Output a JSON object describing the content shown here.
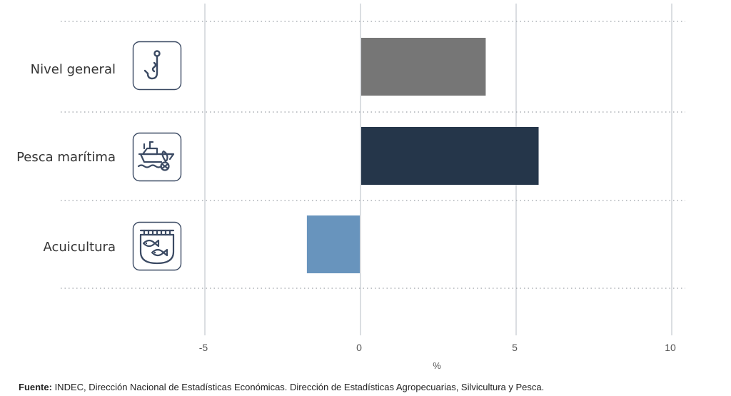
{
  "chart_data": {
    "type": "bar",
    "orientation": "horizontal",
    "categories": [
      "Nivel general",
      "Pesca marítima",
      "Acuicultura"
    ],
    "values": [
      4.0,
      5.7,
      -1.7
    ],
    "bar_colors": [
      "#767676",
      "#25364a",
      "#6894bd"
    ],
    "icons": [
      "fishing-hook-icon",
      "fishing-boat-icon",
      "fish-farm-icon"
    ],
    "xlabel": "%",
    "xlim": [
      -5,
      10
    ],
    "xticks": [
      -5,
      0,
      5,
      10
    ],
    "xtick_labels": [
      "-5",
      "0",
      "5",
      "10"
    ],
    "grid": true
  },
  "source": {
    "label": "Fuente:",
    "text": " INDEC, Dirección Nacional de Estadísticas Económicas. Dirección de Estadísticas Agropecuarias, Silvicultura y Pesca."
  },
  "colors": {
    "gridline": "#cfd3d8",
    "separator": "#9aa0a6",
    "icon_stroke": "#3b4a63"
  }
}
